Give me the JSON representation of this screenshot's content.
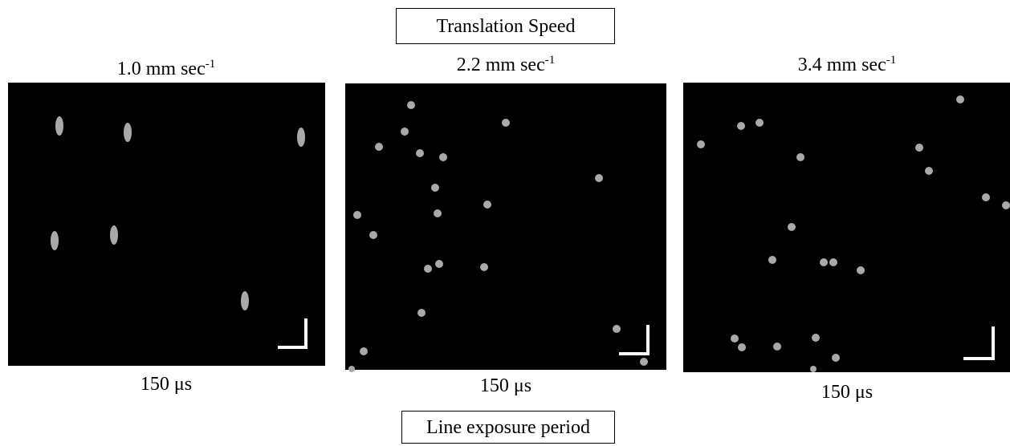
{
  "header": {
    "title": "Translation Speed"
  },
  "panels": [
    {
      "speed": "1.0 mm sec",
      "speed_exponent": "-1",
      "caption": "150 μs"
    },
    {
      "speed": "2.2 mm sec",
      "speed_exponent": "-1",
      "caption": "150 μs"
    },
    {
      "speed": "3.4 mm sec",
      "speed_exponent": "-1",
      "caption": "150 μs"
    }
  ],
  "footer": {
    "title": "Line exposure period"
  }
}
